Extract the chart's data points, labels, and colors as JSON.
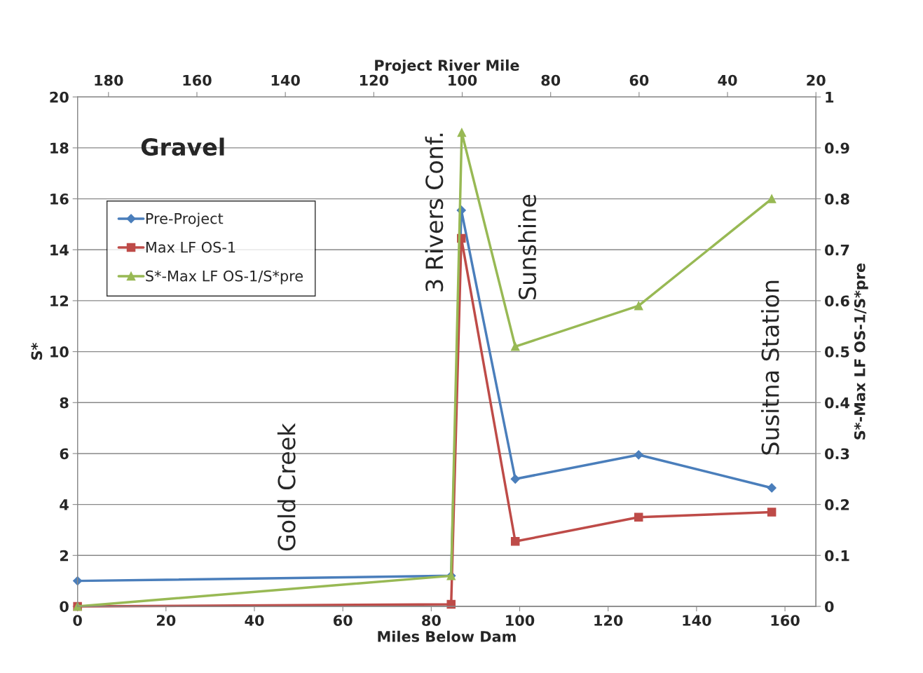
{
  "chart_data": {
    "type": "line",
    "xlabel": "Miles Below Dam",
    "ylabel": "S*",
    "y2label": "S*-Max LF OS-1/S*pre",
    "x2label": "Project River Mile",
    "xlim": [
      0,
      167
    ],
    "xticks": [
      0,
      20,
      40,
      60,
      80,
      100,
      120,
      140,
      160
    ],
    "ylim": [
      0,
      20
    ],
    "yticks": [
      0,
      2,
      4,
      6,
      8,
      10,
      12,
      14,
      16,
      18,
      20
    ],
    "y2lim": [
      0,
      1
    ],
    "y2ticks": [
      0,
      0.1,
      0.2,
      0.3,
      0.4,
      0.5,
      0.6,
      0.7,
      0.8,
      0.9,
      1
    ],
    "x2lim": [
      187,
      20
    ],
    "x2ticks": [
      180,
      160,
      140,
      120,
      100,
      80,
      60,
      40,
      20
    ],
    "grid": "y",
    "legend": "top left",
    "series": [
      {
        "name": "Pre-Project",
        "color": "#4a7ebb",
        "marker": "diamond",
        "x": [
          0,
          84.5,
          86.8,
          99.0,
          126.9,
          157
        ],
        "values": [
          1.0,
          1.2,
          15.55,
          5.0,
          5.95,
          4.65
        ]
      },
      {
        "name": "Max LF OS-1",
        "color": "#be4b48",
        "marker": "square",
        "x": [
          0,
          84.5,
          86.8,
          99.0,
          126.9,
          157
        ],
        "values": [
          0,
          0.08,
          14.45,
          2.55,
          3.5,
          3.7
        ]
      },
      {
        "name": "S*-Max LF OS-1/S*pre",
        "color": "#98b954",
        "marker": "triangle",
        "axis": "y2",
        "x": [
          0,
          84.5,
          86.9,
          99.0,
          126.9,
          157
        ],
        "values": [
          0,
          0.06,
          0.93,
          0.51,
          0.59,
          0.8
        ]
      }
    ],
    "annotations": [
      "Gravel",
      "Gold Creek",
      "3 Rivers Conf.",
      "Sunshine",
      "Susitna Station"
    ]
  }
}
